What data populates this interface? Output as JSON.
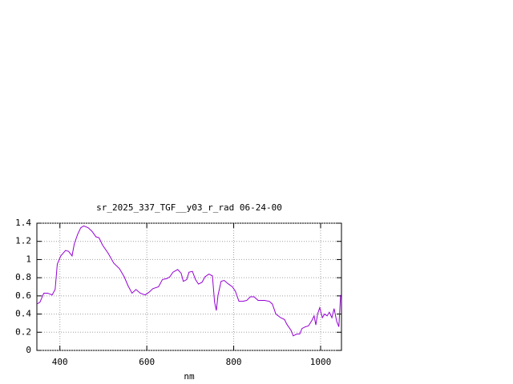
{
  "chart_data": {
    "type": "line",
    "title": "sr_2025_337_TGF__y03_r_rad 06-24-00",
    "x_label": "nm",
    "x": [
      347,
      354,
      363,
      372,
      382,
      389,
      394,
      402,
      413,
      420,
      428,
      433,
      441,
      448,
      455,
      465,
      474,
      483,
      490,
      498,
      511,
      524,
      537,
      548,
      557,
      566,
      575,
      585,
      596,
      605,
      614,
      627,
      636,
      646,
      653,
      660,
      671,
      679,
      684,
      692,
      697,
      705,
      712,
      719,
      727,
      734,
      743,
      751,
      756,
      760,
      764,
      771,
      778,
      788,
      797,
      804,
      812,
      821,
      830,
      838,
      847,
      856,
      871,
      882,
      889,
      897,
      908,
      917,
      922,
      932,
      937,
      945,
      952,
      957,
      965,
      972,
      980,
      985,
      989,
      993,
      998,
      1004,
      1009,
      1015,
      1020,
      1026,
      1031,
      1037,
      1042,
      1046
    ],
    "series": [
      {
        "color": "#9400d3",
        "values": [
          0.51,
          0.53,
          0.63,
          0.63,
          0.61,
          0.67,
          0.95,
          1.04,
          1.1,
          1.09,
          1.04,
          1.17,
          1.28,
          1.35,
          1.37,
          1.35,
          1.31,
          1.25,
          1.24,
          1.16,
          1.07,
          0.96,
          0.9,
          0.81,
          0.71,
          0.63,
          0.67,
          0.63,
          0.61,
          0.64,
          0.68,
          0.7,
          0.78,
          0.79,
          0.81,
          0.86,
          0.89,
          0.85,
          0.76,
          0.78,
          0.86,
          0.87,
          0.78,
          0.73,
          0.75,
          0.81,
          0.84,
          0.82,
          0.53,
          0.44,
          0.61,
          0.76,
          0.77,
          0.73,
          0.7,
          0.65,
          0.54,
          0.54,
          0.55,
          0.59,
          0.59,
          0.55,
          0.55,
          0.54,
          0.51,
          0.4,
          0.36,
          0.34,
          0.29,
          0.22,
          0.16,
          0.18,
          0.18,
          0.24,
          0.26,
          0.27,
          0.33,
          0.38,
          0.28,
          0.4,
          0.47,
          0.36,
          0.4,
          0.38,
          0.42,
          0.36,
          0.46,
          0.32,
          0.26,
          0.61
        ]
      }
    ],
    "xlim": [
      347,
      1048
    ],
    "xticks": [
      400,
      600,
      800,
      1000
    ],
    "ylim": [
      0,
      1.4
    ],
    "yticks": [
      0,
      0.2,
      0.4,
      0.6,
      0.8,
      1,
      1.2,
      1.4
    ],
    "grid": true
  }
}
